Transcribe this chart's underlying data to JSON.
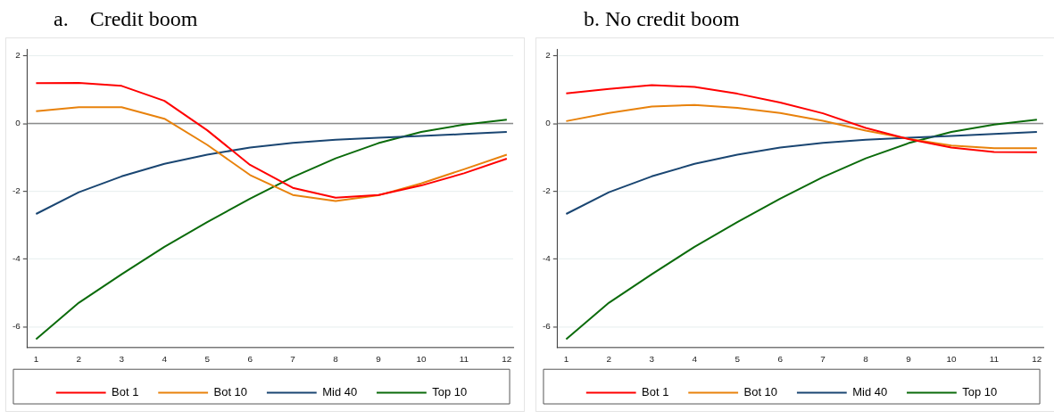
{
  "chart_data": [
    {
      "type": "line",
      "title": "a.    Credit boom",
      "x": [
        1,
        2,
        3,
        4,
        5,
        6,
        7,
        8,
        9,
        10,
        11,
        12
      ],
      "xlim": [
        0.8,
        12.15
      ],
      "xticks": [
        1,
        2,
        3,
        4,
        5,
        6,
        7,
        8,
        9,
        10,
        11,
        12
      ],
      "ylim": [
        -6.6,
        2.2
      ],
      "yticks": [
        -6,
        -4,
        -2,
        0,
        2
      ],
      "grid": "y",
      "legend": "bottom",
      "marker": "none",
      "ref_lines": [
        {
          "axis": "y",
          "value": 0,
          "color": "#8c8c8c"
        }
      ],
      "series": [
        {
          "name": "Bot 1",
          "color": "#ff0000",
          "values": [
            1.19,
            1.2,
            1.11,
            0.67,
            -0.2,
            -1.22,
            -1.9,
            -2.19,
            -2.11,
            -1.83,
            -1.47,
            -1.04
          ]
        },
        {
          "name": "Bot 10",
          "color": "#e8820c",
          "values": [
            0.36,
            0.48,
            0.48,
            0.14,
            -0.63,
            -1.52,
            -2.11,
            -2.29,
            -2.12,
            -1.77,
            -1.35,
            -0.92
          ]
        },
        {
          "name": "Mid 40",
          "color": "#1a4672",
          "values": [
            -2.67,
            -2.03,
            -1.56,
            -1.19,
            -0.92,
            -0.71,
            -0.57,
            -0.48,
            -0.42,
            -0.37,
            -0.31,
            -0.25
          ]
        },
        {
          "name": "Top 10",
          "color": "#0b6b0b",
          "values": [
            -6.37,
            -5.29,
            -4.45,
            -3.64,
            -2.91,
            -2.22,
            -1.58,
            -1.03,
            -0.58,
            -0.25,
            -0.03,
            0.11
          ]
        }
      ]
    },
    {
      "type": "line",
      "title": "b. No credit boom",
      "x": [
        1,
        2,
        3,
        4,
        5,
        6,
        7,
        8,
        9,
        10,
        11,
        12
      ],
      "xlim": [
        0.8,
        12.15
      ],
      "xticks": [
        1,
        2,
        3,
        4,
        5,
        6,
        7,
        8,
        9,
        10,
        11,
        12
      ],
      "ylim": [
        -6.6,
        2.2
      ],
      "yticks": [
        -6,
        -4,
        -2,
        0,
        2
      ],
      "grid": "y",
      "legend": "bottom",
      "marker": "none",
      "ref_lines": [
        {
          "axis": "y",
          "value": 0,
          "color": "#8c8c8c"
        }
      ],
      "series": [
        {
          "name": "Bot 1",
          "color": "#ff0000",
          "values": [
            0.89,
            1.02,
            1.13,
            1.08,
            0.88,
            0.62,
            0.3,
            -0.13,
            -0.46,
            -0.71,
            -0.84,
            -0.85
          ]
        },
        {
          "name": "Bot 10",
          "color": "#e8820c",
          "values": [
            0.07,
            0.31,
            0.5,
            0.55,
            0.46,
            0.31,
            0.08,
            -0.21,
            -0.45,
            -0.65,
            -0.73,
            -0.73
          ]
        },
        {
          "name": "Mid 40",
          "color": "#1a4672",
          "values": [
            -2.67,
            -2.03,
            -1.56,
            -1.19,
            -0.92,
            -0.71,
            -0.57,
            -0.48,
            -0.42,
            -0.37,
            -0.31,
            -0.25
          ]
        },
        {
          "name": "Top 10",
          "color": "#0b6b0b",
          "values": [
            -6.37,
            -5.29,
            -4.45,
            -3.64,
            -2.91,
            -2.22,
            -1.58,
            -1.03,
            -0.58,
            -0.25,
            -0.03,
            0.11
          ]
        }
      ]
    }
  ]
}
